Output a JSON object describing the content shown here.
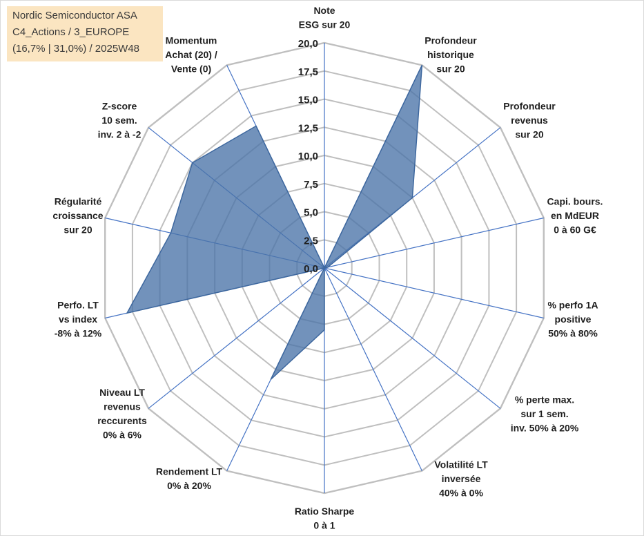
{
  "title": {
    "lines": [
      "Nordic Semiconductor ASA",
      "C4_Actions / 3_EUROPE",
      "(16,7% | 31,0%) / 2025W48"
    ]
  },
  "chart_data": {
    "type": "radar",
    "rmax": 20,
    "ticks": [
      "0,0",
      "2,5",
      "5,0",
      "7,5",
      "10,0",
      "12,5",
      "15,0",
      "17,5",
      "20,0"
    ],
    "tick_values": [
      0,
      2.5,
      5,
      7.5,
      10,
      12.5,
      15,
      17.5,
      20
    ],
    "axes": [
      {
        "label": [
          "Note",
          "ESG sur 20"
        ],
        "value": 0
      },
      {
        "label": [
          "Profondeur",
          "historique",
          "sur 20"
        ],
        "value": 20
      },
      {
        "label": [
          "Profondeur",
          "revenus",
          "sur 20"
        ],
        "value": 10
      },
      {
        "label": [
          "Capi. bours.",
          "en MdEUR",
          "0 à 60 G€"
        ],
        "value": 0.3
      },
      {
        "label": [
          "% perfo 1A",
          "positive",
          "50% à 80%"
        ],
        "value": 0
      },
      {
        "label": [
          "% perte max.",
          "sur 1 sem.",
          "inv. 50% à 20%"
        ],
        "value": 0
      },
      {
        "label": [
          "Volatilité LT",
          "inversée",
          "40% à 0%"
        ],
        "value": 0
      },
      {
        "label": [
          "Ratio Sharpe",
          "0 à 1"
        ],
        "value": 5.5
      },
      {
        "label": [
          "Rendement LT",
          "0% à 20%"
        ],
        "value": 11
      },
      {
        "label": [
          "Niveau LT",
          "revenus",
          "reccurents",
          "0% à 6%"
        ],
        "value": 0
      },
      {
        "label": [
          "Perfo. LT",
          "vs index",
          "-8% à 12%"
        ],
        "value": 18
      },
      {
        "label": [
          "Régularité",
          "croissance",
          "sur 20"
        ],
        "value": 14
      },
      {
        "label": [
          "Z-score",
          "10 sem.",
          "inv. 2 à -2"
        ],
        "value": 15
      },
      {
        "label": [
          "Momentum",
          "Achat (20) /",
          "Vente (0)"
        ],
        "value": 14
      }
    ],
    "series": [
      {
        "name": "Nordic Semiconductor ASA",
        "color": "#4a73a8"
      }
    ],
    "grid_color": "#bfbfbf",
    "spoke_color": "#4472c4"
  }
}
